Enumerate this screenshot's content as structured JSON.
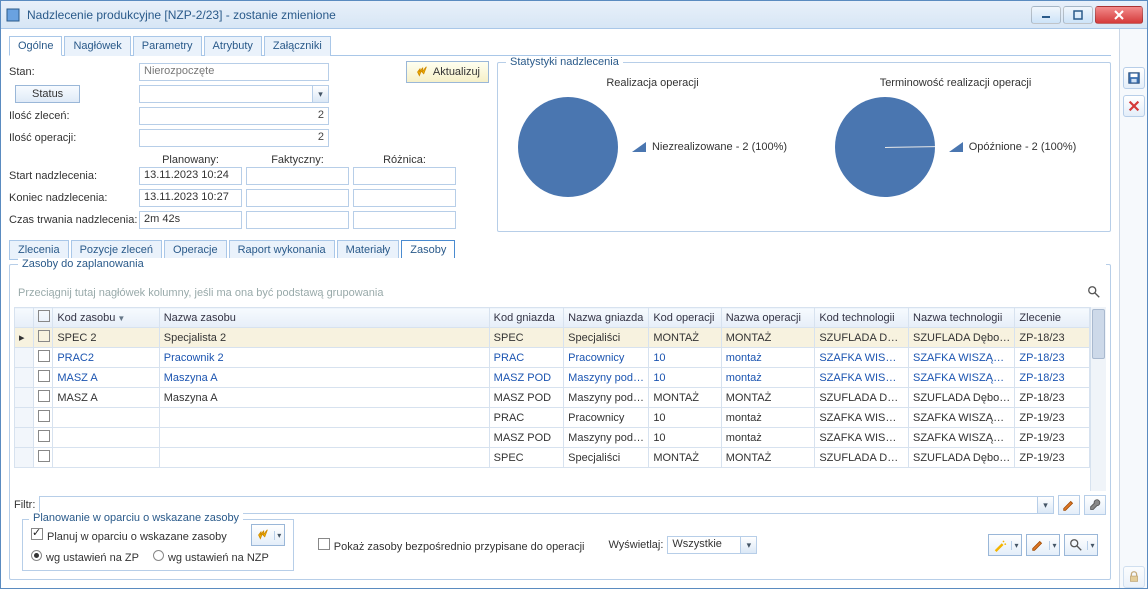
{
  "window": {
    "title": "Nadzlecenie produkcyjne [NZP-2/23] - zostanie zmienione"
  },
  "tabs": [
    "Ogólne",
    "Nagłówek",
    "Parametry",
    "Atrybuty",
    "Załączniki"
  ],
  "active_tab": 0,
  "form": {
    "stan_label": "Stan:",
    "stan_value": "Nierozpoczęte",
    "status_btn": "Status",
    "aktualizuj": "Aktualizuj",
    "ilosc_zlecen_label": "Ilość zleceń:",
    "ilosc_zlecen_val": "2",
    "ilosc_operacji_label": "Ilość operacji:",
    "ilosc_operacji_val": "2",
    "col_plan": "Planowany:",
    "col_fakt": "Faktyczny:",
    "col_rozn": "Różnica:",
    "start_label": "Start nadzlecenia:",
    "start_plan": "13.11.2023 10:24",
    "koniec_label": "Koniec nadzlecenia:",
    "koniec_plan": "13.11.2023 10:27",
    "czas_label": "Czas trwania nadzlecenia:",
    "czas_plan": "2m 42s"
  },
  "stats": {
    "group_title": "Statystyki nadzlecenia",
    "chart1": {
      "title": "Realizacja operacji",
      "legend": "Niezrealizowane - 2 (100%)",
      "color": "#4a76b0",
      "value": 100
    },
    "chart2": {
      "title": "Terminowość realizacji operacji",
      "legend": "Opóźnione - 2 (100%)",
      "color": "#4a76b0",
      "value": 100,
      "slice_angle_deg": 2
    }
  },
  "subtabs": [
    "Zlecenia",
    "Pozycje zleceń",
    "Operacje",
    "Raport wykonania",
    "Materiały",
    "Zasoby"
  ],
  "active_subtab": 5,
  "resources_title": "Zasoby do zaplanowania",
  "grid_hint": "Przeciągnij tutaj nagłówek kolumny, jeśli ma ona być podstawą grupowania",
  "grid": {
    "columns": [
      "Kod zasobu",
      "Nazwa zasobu",
      "Kod gniazda",
      "Nazwa gniazda",
      "Kod operacji",
      "Nazwa operacji",
      "Kod technologii",
      "Nazwa technologii",
      "Zlecenie"
    ],
    "rows": [
      {
        "sel": true,
        "blue": false,
        "c": [
          "SPEC 2",
          "Specjalista 2",
          "SPEC",
          "Specjaliści",
          "MONTAŻ",
          "MONTAŻ",
          "SZUFLADA D…",
          "SZUFLADA Dębo…",
          "ZP-18/23"
        ]
      },
      {
        "sel": false,
        "blue": true,
        "c": [
          "PRAC2",
          "Pracownik 2",
          "PRAC",
          "Pracownicy",
          "10",
          "montaż",
          "SZAFKA WIS…",
          "SZAFKA WISZĄ…",
          "ZP-18/23"
        ]
      },
      {
        "sel": false,
        "blue": true,
        "c": [
          "MASZ A",
          "Maszyna A",
          "MASZ POD",
          "Maszyny pod…",
          "10",
          "montaż",
          "SZAFKA WIS…",
          "SZAFKA WISZĄ…",
          "ZP-18/23"
        ]
      },
      {
        "sel": false,
        "blue": false,
        "c": [
          "MASZ A",
          "Maszyna A",
          "MASZ POD",
          "Maszyny pod…",
          "MONTAŻ",
          "MONTAŻ",
          "SZUFLADA D…",
          "SZUFLADA Dębo…",
          "ZP-18/23"
        ]
      },
      {
        "sel": false,
        "blue": false,
        "c": [
          "",
          "",
          "PRAC",
          "Pracownicy",
          "10",
          "montaż",
          "SZAFKA WIS…",
          "SZAFKA WISZĄ…",
          "ZP-19/23"
        ]
      },
      {
        "sel": false,
        "blue": false,
        "c": [
          "",
          "",
          "MASZ POD",
          "Maszyny pod…",
          "10",
          "montaż",
          "SZAFKA WIS…",
          "SZAFKA WISZĄ…",
          "ZP-19/23"
        ]
      },
      {
        "sel": false,
        "blue": false,
        "c": [
          "",
          "",
          "SPEC",
          "Specjaliści",
          "MONTAŻ",
          "MONTAŻ",
          "SZUFLADA D…",
          "SZUFLADA Dębo…",
          "ZP-19/23"
        ]
      }
    ]
  },
  "filter_label": "Filtr:",
  "plan_group": {
    "title": "Planowanie w oparciu o wskazane zasoby",
    "check_label": "Planuj w oparciu o wskazane zasoby",
    "radio1": "wg ustawień na ZP",
    "radio2": "wg ustawień na NZP"
  },
  "show_direct": "Pokaż zasoby bezpośrednio przypisane do operacji",
  "display_label": "Wyświetlaj:",
  "display_value": "Wszystkie",
  "colors": {
    "accent": "#2a5a8a",
    "pie": "#4a76b0"
  }
}
